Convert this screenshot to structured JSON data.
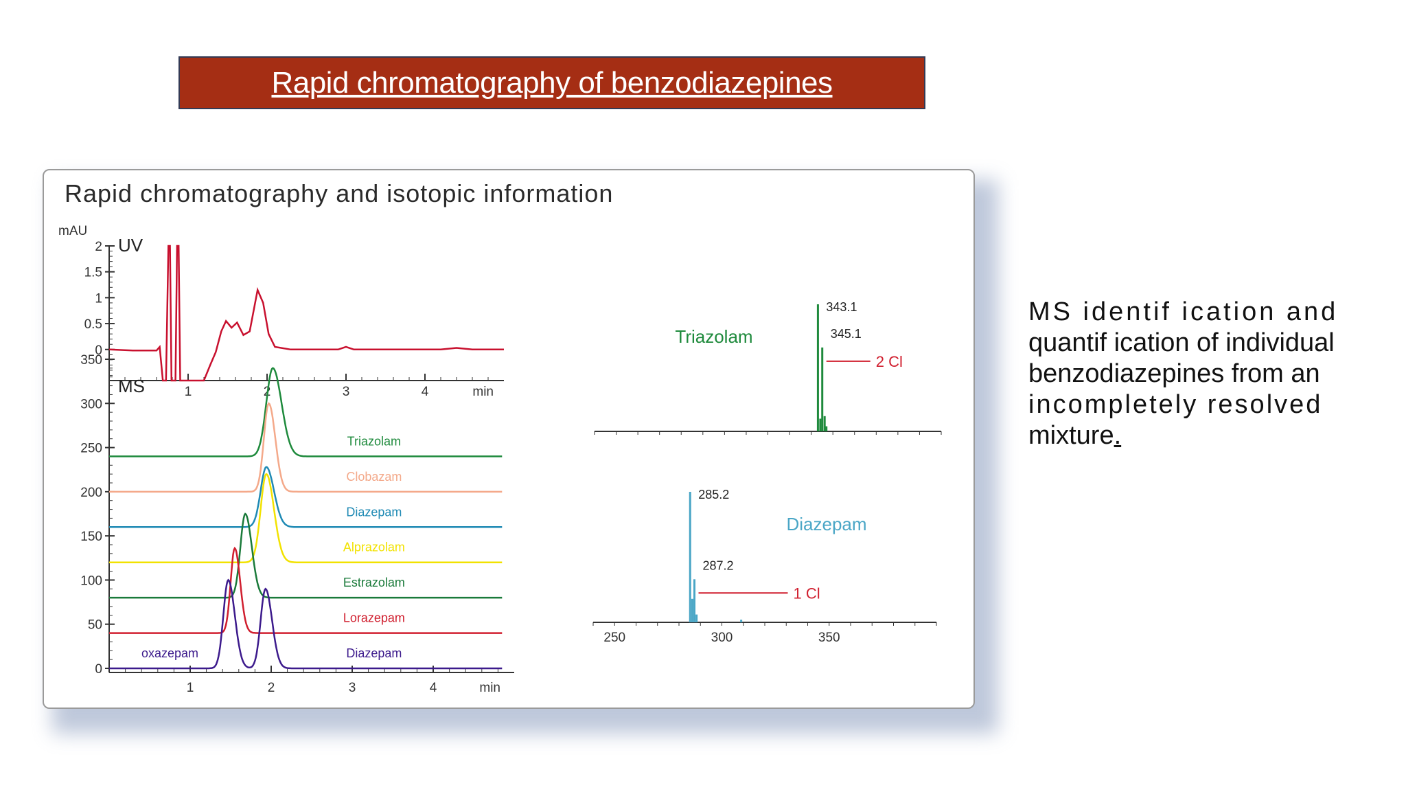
{
  "slide_title": "Rapid chromatography of benzodiazepines",
  "figure_title": "Rapid chromatography and isotopic information",
  "side_text": {
    "line1": "MS identif ication and",
    "line2": "quantif ication of individual",
    "line3": "benzodiazepines from an",
    "line4": "incompletely resolved",
    "line5": "mixture",
    "line5_dot": "."
  },
  "colors": {
    "banner": "#a52e14",
    "uv_trace": "#c8102e",
    "triazolam": "#1e8a3c",
    "clobazam": "#f4a98a",
    "diazepam": "#1f8ab4",
    "alprazolam": "#f2e200",
    "estrazolam": "#1a7a3a",
    "lorazepam": "#d01e2e",
    "oxazepam": "#3c1a8c",
    "spectrum_triazolam": "#1e8a3c",
    "spectrum_diazepam": "#4aa6c6",
    "cl_annotation": "#d01e2e"
  },
  "chart_data": [
    {
      "type": "line",
      "panel": "UV",
      "ylabel_unit": "mAU",
      "xlabel": "min",
      "xlim": [
        0,
        5
      ],
      "ylim": [
        -0.6,
        2
      ],
      "x_ticks": [
        "1",
        "2",
        "3",
        "4"
      ],
      "y_ticks": [
        "2",
        "1.5",
        "1",
        "0.5",
        "0"
      ],
      "series": [
        {
          "color": "#c8102e",
          "points": [
            [
              0,
              0
            ],
            [
              0.3,
              -0.02
            ],
            [
              0.6,
              -0.02
            ],
            [
              0.64,
              0.05
            ],
            [
              0.68,
              -0.6
            ],
            [
              0.72,
              -0.6
            ],
            [
              0.75,
              2
            ],
            [
              0.77,
              2
            ],
            [
              0.79,
              -0.6
            ],
            [
              0.84,
              -0.6
            ],
            [
              0.86,
              2
            ],
            [
              0.88,
              2
            ],
            [
              0.9,
              -0.6
            ],
            [
              1.2,
              -0.6
            ],
            [
              1.28,
              -0.3
            ],
            [
              1.35,
              -0.05
            ],
            [
              1.42,
              0.35
            ],
            [
              1.48,
              0.55
            ],
            [
              1.55,
              0.42
            ],
            [
              1.62,
              0.52
            ],
            [
              1.7,
              0.28
            ],
            [
              1.78,
              0.35
            ],
            [
              1.88,
              1.15
            ],
            [
              1.95,
              0.9
            ],
            [
              2.02,
              0.3
            ],
            [
              2.1,
              0.05
            ],
            [
              2.3,
              0
            ],
            [
              2.9,
              0
            ],
            [
              3,
              0.05
            ],
            [
              3.1,
              0.0
            ],
            [
              4.2,
              0
            ],
            [
              4.4,
              0.03
            ],
            [
              4.6,
              0
            ],
            [
              5,
              0
            ]
          ]
        }
      ]
    },
    {
      "type": "line",
      "panel": "MS",
      "xlabel": "min",
      "xlim": [
        0,
        5
      ],
      "ylim": [
        0,
        350
      ],
      "x_ticks": [
        "1",
        "2",
        "3",
        "4"
      ],
      "y_ticks": [
        "350",
        "300",
        "250",
        "200",
        "150",
        "100",
        "50",
        "0"
      ],
      "series": [
        {
          "name": "Triazolam",
          "baseline": 240,
          "peaks": [
            [
              2.02,
              100,
              0.08
            ]
          ]
        },
        {
          "name": "Clobazam",
          "baseline": 200,
          "peaks": [
            [
              1.97,
              100,
              0.06
            ]
          ]
        },
        {
          "name": "Diazepam",
          "baseline": 160,
          "peaks": [
            [
              1.94,
              68,
              0.07
            ]
          ]
        },
        {
          "name": "Alprazolam",
          "baseline": 120,
          "peaks": [
            [
              1.94,
              100,
              0.07
            ]
          ]
        },
        {
          "name": "Estrazolam",
          "baseline": 80,
          "peaks": [
            [
              1.68,
              95,
              0.06
            ]
          ]
        },
        {
          "name": "Lorazepam",
          "baseline": 40,
          "peaks": [
            [
              1.55,
              96,
              0.05
            ]
          ]
        },
        {
          "name": "oxazepam",
          "baseline": 0,
          "peaks": [
            [
              1.47,
              100,
              0.06
            ],
            [
              1.93,
              90,
              0.06
            ]
          ]
        }
      ],
      "annotations": [
        "Diazepam"
      ]
    },
    {
      "type": "bar",
      "panel": "Triazolam mass spectrum",
      "label": "Triazolam",
      "xlim": [
        240,
        400
      ],
      "peaks": [
        [
          343.1,
          1.0
        ],
        [
          345.1,
          0.66
        ],
        [
          344.2,
          0.1
        ],
        [
          346.2,
          0.12
        ],
        [
          347.0,
          0.04
        ]
      ],
      "peak_labels": [
        "343.1",
        "345.1"
      ],
      "annotation": "2 Cl"
    },
    {
      "type": "bar",
      "panel": "Diazepam mass spectrum",
      "label": "Diazepam",
      "xlim": [
        240,
        400
      ],
      "x_ticks": [
        "250",
        "300",
        "350"
      ],
      "peaks": [
        [
          285.2,
          1.0
        ],
        [
          287.2,
          0.33
        ],
        [
          286.2,
          0.18
        ],
        [
          288.2,
          0.06
        ],
        [
          309.0,
          0.02
        ]
      ],
      "peak_labels": [
        "285.2",
        "287.2"
      ],
      "annotation": "1 Cl"
    }
  ]
}
